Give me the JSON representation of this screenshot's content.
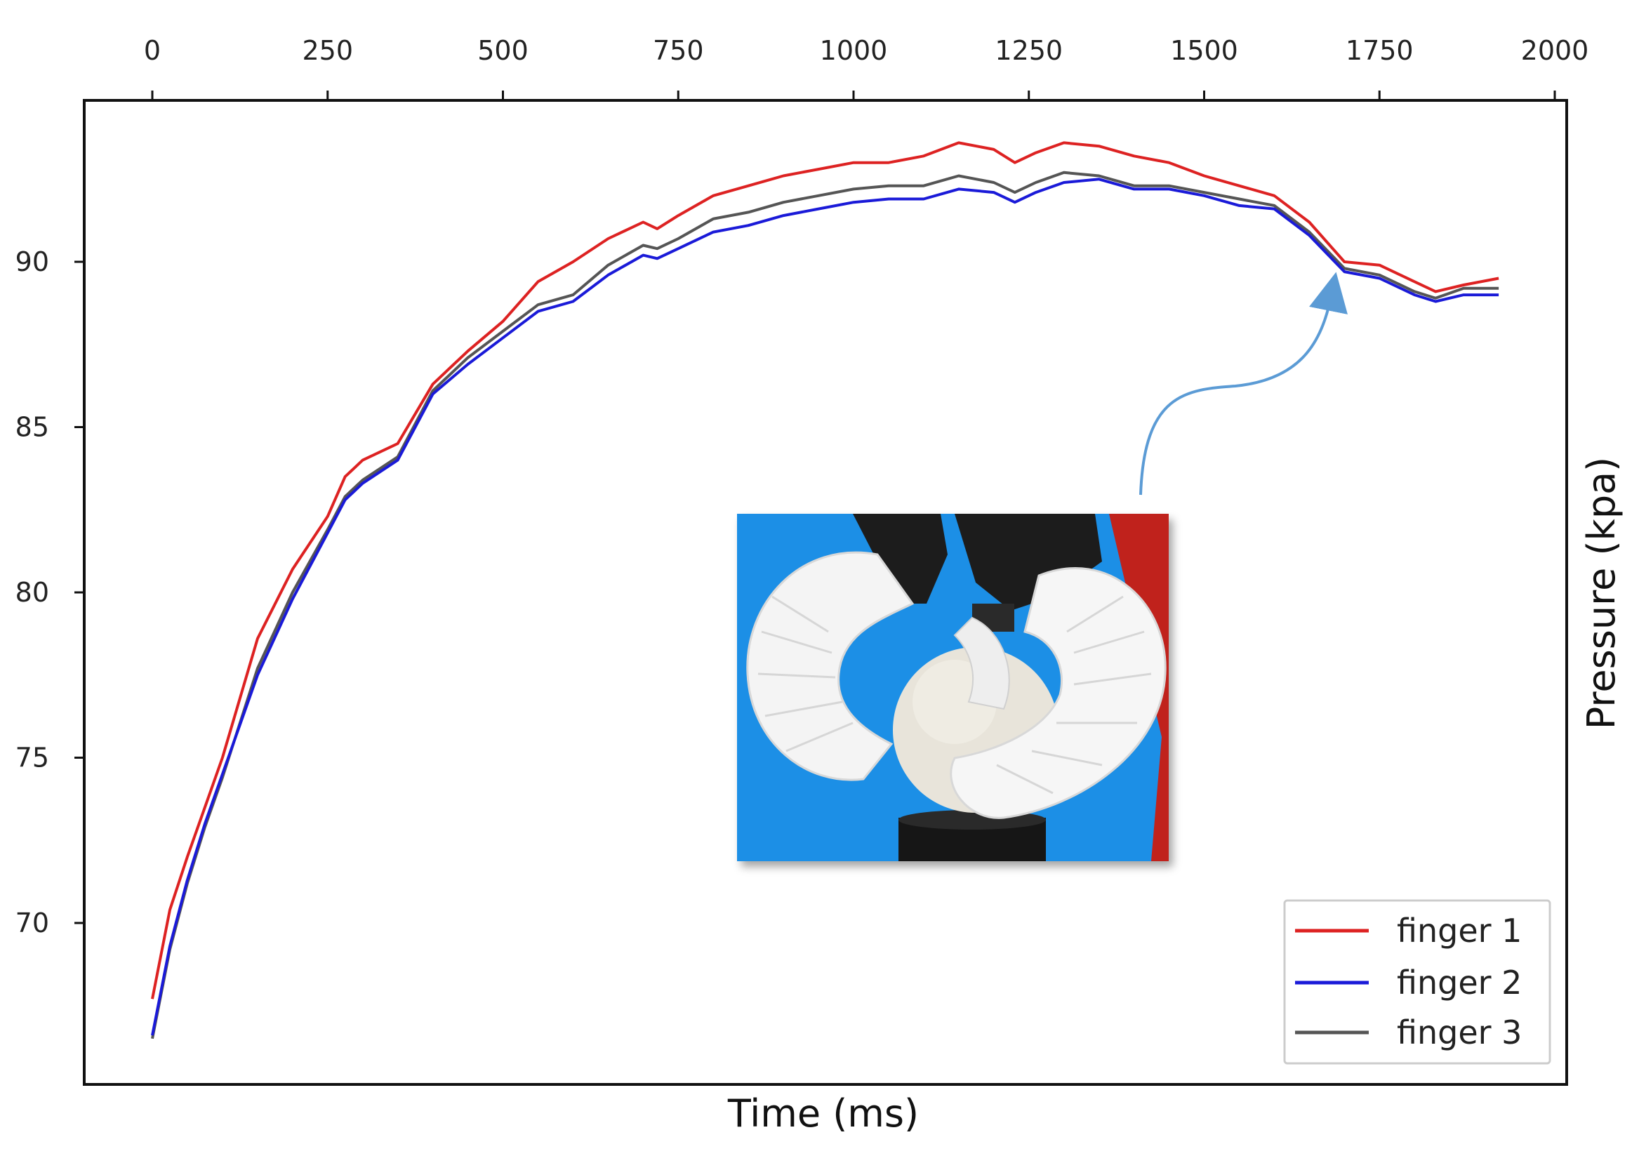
{
  "chart_data": {
    "type": "line",
    "title": "",
    "xlabel": "Time (ms)",
    "ylabel": "Pressure (kpa)",
    "xlim": [
      -100,
      2000
    ],
    "ylim": [
      65.3,
      95.0
    ],
    "x_ticks": [
      0,
      250,
      500,
      750,
      1000,
      1250,
      1500,
      1750,
      2000
    ],
    "x_tick_labels": [
      "0",
      "250",
      "500",
      "750",
      "1000",
      "1250",
      "1500",
      "1750",
      "2000"
    ],
    "y_ticks": [
      70,
      75,
      80,
      85,
      90
    ],
    "y_tick_labels": [
      "70",
      "75",
      "80",
      "85",
      "90"
    ],
    "x_axis_position": "top",
    "y_label_position": "right",
    "grid": false,
    "legend_position": "bottom-right",
    "series": [
      {
        "name": "finger 1",
        "color": "#dd2222",
        "points": [
          [
            0,
            67.7
          ],
          [
            25,
            70.4
          ],
          [
            50,
            72.0
          ],
          [
            75,
            73.5
          ],
          [
            100,
            75.0
          ],
          [
            150,
            78.6
          ],
          [
            200,
            80.7
          ],
          [
            250,
            82.3
          ],
          [
            275,
            83.5
          ],
          [
            300,
            84.0
          ],
          [
            350,
            84.5
          ],
          [
            400,
            86.3
          ],
          [
            450,
            87.3
          ],
          [
            500,
            88.2
          ],
          [
            550,
            89.4
          ],
          [
            600,
            90.0
          ],
          [
            650,
            90.7
          ],
          [
            700,
            91.2
          ],
          [
            720,
            91.0
          ],
          [
            750,
            91.4
          ],
          [
            800,
            92.0
          ],
          [
            850,
            92.3
          ],
          [
            900,
            92.6
          ],
          [
            950,
            92.8
          ],
          [
            1000,
            93.0
          ],
          [
            1050,
            93.0
          ],
          [
            1100,
            93.2
          ],
          [
            1150,
            93.6
          ],
          [
            1200,
            93.4
          ],
          [
            1230,
            93.0
          ],
          [
            1260,
            93.3
          ],
          [
            1300,
            93.6
          ],
          [
            1350,
            93.5
          ],
          [
            1400,
            93.2
          ],
          [
            1450,
            93.0
          ],
          [
            1500,
            92.6
          ],
          [
            1550,
            92.3
          ],
          [
            1600,
            92.0
          ],
          [
            1650,
            91.2
          ],
          [
            1700,
            90.0
          ],
          [
            1750,
            89.9
          ],
          [
            1800,
            89.4
          ],
          [
            1830,
            89.1
          ],
          [
            1870,
            89.3
          ],
          [
            1920,
            89.5
          ]
        ]
      },
      {
        "name": "finger 2",
        "color": "#1a1ad8",
        "points": [
          [
            0,
            66.6
          ],
          [
            25,
            69.3
          ],
          [
            50,
            71.3
          ],
          [
            75,
            73.0
          ],
          [
            100,
            74.5
          ],
          [
            150,
            77.5
          ],
          [
            200,
            79.8
          ],
          [
            250,
            81.8
          ],
          [
            275,
            82.8
          ],
          [
            300,
            83.3
          ],
          [
            350,
            84.0
          ],
          [
            400,
            86.0
          ],
          [
            450,
            86.9
          ],
          [
            500,
            87.7
          ],
          [
            550,
            88.5
          ],
          [
            600,
            88.8
          ],
          [
            650,
            89.6
          ],
          [
            700,
            90.2
          ],
          [
            720,
            90.1
          ],
          [
            750,
            90.4
          ],
          [
            800,
            90.9
          ],
          [
            850,
            91.1
          ],
          [
            900,
            91.4
          ],
          [
            950,
            91.6
          ],
          [
            1000,
            91.8
          ],
          [
            1050,
            91.9
          ],
          [
            1100,
            91.9
          ],
          [
            1150,
            92.2
          ],
          [
            1200,
            92.1
          ],
          [
            1230,
            91.8
          ],
          [
            1260,
            92.1
          ],
          [
            1300,
            92.4
          ],
          [
            1350,
            92.5
          ],
          [
            1400,
            92.2
          ],
          [
            1450,
            92.2
          ],
          [
            1500,
            92.0
          ],
          [
            1550,
            91.7
          ],
          [
            1600,
            91.6
          ],
          [
            1650,
            90.8
          ],
          [
            1700,
            89.7
          ],
          [
            1750,
            89.5
          ],
          [
            1800,
            89.0
          ],
          [
            1830,
            88.8
          ],
          [
            1870,
            89.0
          ],
          [
            1920,
            89.0
          ]
        ]
      },
      {
        "name": "finger 3",
        "color": "#555555",
        "points": [
          [
            0,
            66.5
          ],
          [
            25,
            69.2
          ],
          [
            50,
            71.2
          ],
          [
            75,
            72.9
          ],
          [
            100,
            74.4
          ],
          [
            150,
            77.7
          ],
          [
            200,
            80.0
          ],
          [
            250,
            81.9
          ],
          [
            275,
            82.9
          ],
          [
            300,
            83.4
          ],
          [
            350,
            84.1
          ],
          [
            400,
            86.1
          ],
          [
            450,
            87.1
          ],
          [
            500,
            87.9
          ],
          [
            550,
            88.7
          ],
          [
            600,
            89.0
          ],
          [
            650,
            89.9
          ],
          [
            700,
            90.5
          ],
          [
            720,
            90.4
          ],
          [
            750,
            90.7
          ],
          [
            800,
            91.3
          ],
          [
            850,
            91.5
          ],
          [
            900,
            91.8
          ],
          [
            950,
            92.0
          ],
          [
            1000,
            92.2
          ],
          [
            1050,
            92.3
          ],
          [
            1100,
            92.3
          ],
          [
            1150,
            92.6
          ],
          [
            1200,
            92.4
          ],
          [
            1230,
            92.1
          ],
          [
            1260,
            92.4
          ],
          [
            1300,
            92.7
          ],
          [
            1350,
            92.6
          ],
          [
            1400,
            92.3
          ],
          [
            1450,
            92.3
          ],
          [
            1500,
            92.1
          ],
          [
            1550,
            91.9
          ],
          [
            1600,
            91.7
          ],
          [
            1650,
            90.9
          ],
          [
            1700,
            89.8
          ],
          [
            1750,
            89.6
          ],
          [
            1800,
            89.1
          ],
          [
            1830,
            88.9
          ],
          [
            1870,
            89.2
          ],
          [
            1920,
            89.2
          ]
        ]
      }
    ]
  },
  "inset": {
    "description_icon": "soft-robotic-gripper-photo",
    "background_color": "#1e8fe6",
    "arrow_color": "#5b9bd5",
    "arrow_target_x": 1690
  }
}
